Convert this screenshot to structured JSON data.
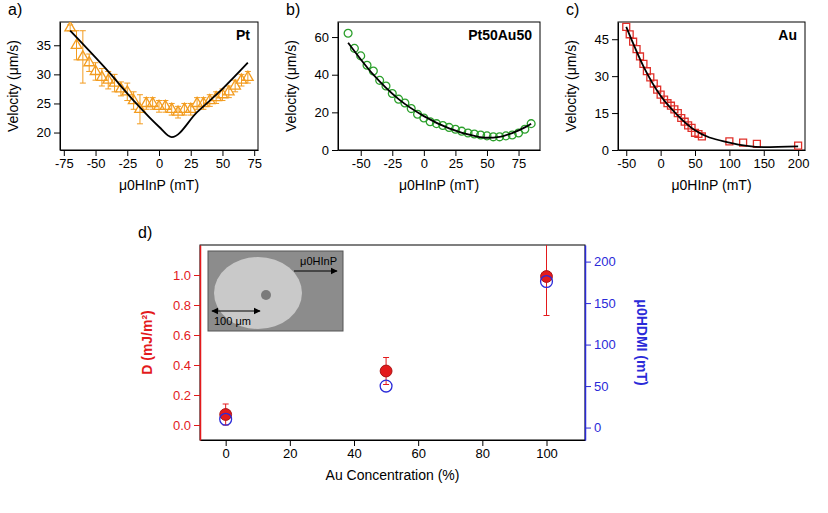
{
  "chart_data": [
    {
      "type": "scatter",
      "title": "Pt",
      "panel_label": "a)",
      "x_label": "μ0HInP (mT)",
      "y_label": "Velocity (μm/s)",
      "xlim": [
        -78,
        78
      ],
      "xticks": [
        -75,
        -50,
        -25,
        0,
        25,
        50,
        75
      ],
      "ylim": [
        17,
        39
      ],
      "yticks": [
        20,
        25,
        30,
        35
      ],
      "grid": false,
      "series": [
        {
          "type": "scatter",
          "color": "#f39c1f",
          "marker": "open-triangle",
          "x": [
            -70,
            -65,
            -60,
            -55,
            -50,
            -45,
            -40,
            -35,
            -30,
            -25,
            -20,
            -15,
            -10,
            -5,
            0,
            5,
            10,
            15,
            20,
            25,
            30,
            35,
            40,
            45,
            50,
            55,
            60,
            65,
            70
          ],
          "values": [
            38,
            35,
            33,
            32,
            30.5,
            29.5,
            29,
            28.5,
            27.5,
            27,
            25.5,
            24,
            25,
            25,
            24.5,
            24.5,
            24,
            23.5,
            24,
            24,
            25,
            25,
            25.5,
            26,
            26.5,
            27,
            28,
            29,
            29.5
          ],
          "errors": [
            0.5,
            2.5,
            4.5,
            1.5,
            1.5,
            1.5,
            1.5,
            1.5,
            1.2,
            1.5,
            1.5,
            2.5,
            1,
            1,
            1,
            1,
            1,
            1,
            1,
            1,
            1,
            1,
            1,
            1,
            1,
            1,
            1,
            1,
            1
          ]
        },
        {
          "type": "line",
          "color": "#000000",
          "line_style": "solid",
          "x": [
            -70,
            -40,
            -20,
            0,
            10,
            30,
            50,
            70
          ],
          "values": [
            37.5,
            30.5,
            25.5,
            21,
            19.2,
            23.5,
            27.5,
            32
          ]
        }
      ]
    },
    {
      "type": "scatter",
      "title": "Pt50Au50",
      "panel_label": "b)",
      "x_label": "μ0HInP (mT)",
      "y_label": "Velocity (μm/s)",
      "xlim": [
        -68,
        92
      ],
      "xticks": [
        -50,
        -25,
        0,
        25,
        50,
        75
      ],
      "ylim": [
        0,
        68
      ],
      "yticks": [
        0,
        20,
        40,
        60
      ],
      "grid": false,
      "series": [
        {
          "type": "scatter",
          "color": "#2ca02c",
          "marker": "open-circle",
          "x": [
            -60,
            -55,
            -50,
            -45,
            -40,
            -35,
            -30,
            -25,
            -20,
            -15,
            -10,
            -5,
            0,
            5,
            10,
            15,
            20,
            25,
            30,
            35,
            40,
            45,
            50,
            55,
            60,
            65,
            70,
            75,
            80,
            85
          ],
          "values": [
            62,
            54,
            50,
            45,
            42,
            37,
            34,
            30,
            27,
            25,
            22,
            19,
            17,
            15,
            14,
            13,
            12,
            11,
            10,
            9,
            8.5,
            8,
            7.5,
            7,
            7,
            7.5,
            8,
            9,
            11,
            14
          ]
        },
        {
          "type": "line",
          "color": "#000000",
          "line_style": "solid",
          "x": [
            -60,
            -40,
            -20,
            0,
            20,
            40,
            50,
            60,
            70,
            80,
            85
          ],
          "values": [
            57,
            40,
            27,
            18,
            11.5,
            7.5,
            6.5,
            7,
            9,
            12,
            14
          ]
        }
      ]
    },
    {
      "type": "scatter",
      "title": "Au",
      "panel_label": "c)",
      "x_label": "μ0HInP (mT)",
      "y_label": "Velocity (μm/s)",
      "xlim": [
        -62,
        210
      ],
      "xticks": [
        -50,
        0,
        50,
        100,
        150,
        200
      ],
      "ylim": [
        0,
        52
      ],
      "yticks": [
        0,
        15,
        30,
        45
      ],
      "grid": false,
      "series": [
        {
          "type": "scatter",
          "color": "#e0302a",
          "marker": "open-square",
          "x": [
            -50,
            -45,
            -40,
            -35,
            -30,
            -25,
            -20,
            -15,
            -10,
            -5,
            0,
            5,
            10,
            15,
            20,
            25,
            30,
            35,
            40,
            45,
            50,
            55,
            60,
            100,
            120,
            140,
            200
          ],
          "values": [
            50,
            47,
            44,
            41,
            38,
            35,
            32,
            29.5,
            27,
            24.5,
            22.5,
            20.5,
            19,
            18,
            16.5,
            15,
            13,
            11.5,
            10,
            9,
            7,
            6.5,
            5.5,
            3.5,
            3,
            2.5,
            1.8
          ]
        },
        {
          "type": "line",
          "color": "#000000",
          "line_style": "solid",
          "x": [
            -50,
            -25,
            0,
            25,
            50,
            100,
            150,
            200
          ],
          "values": [
            50,
            34,
            22,
            14,
            8,
            3,
            1.2,
            1.5
          ]
        }
      ]
    },
    {
      "type": "scatter",
      "panel_label": "d)",
      "x_label": "Au Concentration (%)",
      "y_label": "D (mJ/m²)",
      "y2_label": "μ0HDMI (mT)",
      "xlim": [
        -8,
        112
      ],
      "xticks": [
        0,
        20,
        40,
        60,
        80,
        100
      ],
      "ylim": [
        -0.1,
        1.2
      ],
      "yticks": [
        {
          "value": 0,
          "label": "0.0"
        },
        0.2,
        0.4,
        0.6,
        0.8,
        {
          "value": 1,
          "label": "1.0"
        }
      ],
      "y2lim": [
        -15,
        220
      ],
      "y2ticks": [
        0,
        50,
        100,
        150,
        200
      ],
      "grid": false,
      "inset": {
        "field_label": "μ0HInP",
        "scale_bar": "100 μm"
      },
      "series": [
        {
          "type": "scatter",
          "color": "#e31a1c",
          "marker": "circle",
          "x": [
            0,
            50,
            100
          ],
          "values": [
            0.07,
            0.36,
            0.99
          ],
          "errors": [
            0.07,
            0.09,
            0.26
          ]
        },
        {
          "type": "scatter",
          "axis": "y2",
          "color": "#2a2ad8",
          "marker": "open-circle",
          "x": [
            0,
            50,
            100
          ],
          "values": [
            10,
            50,
            176
          ]
        }
      ]
    }
  ]
}
